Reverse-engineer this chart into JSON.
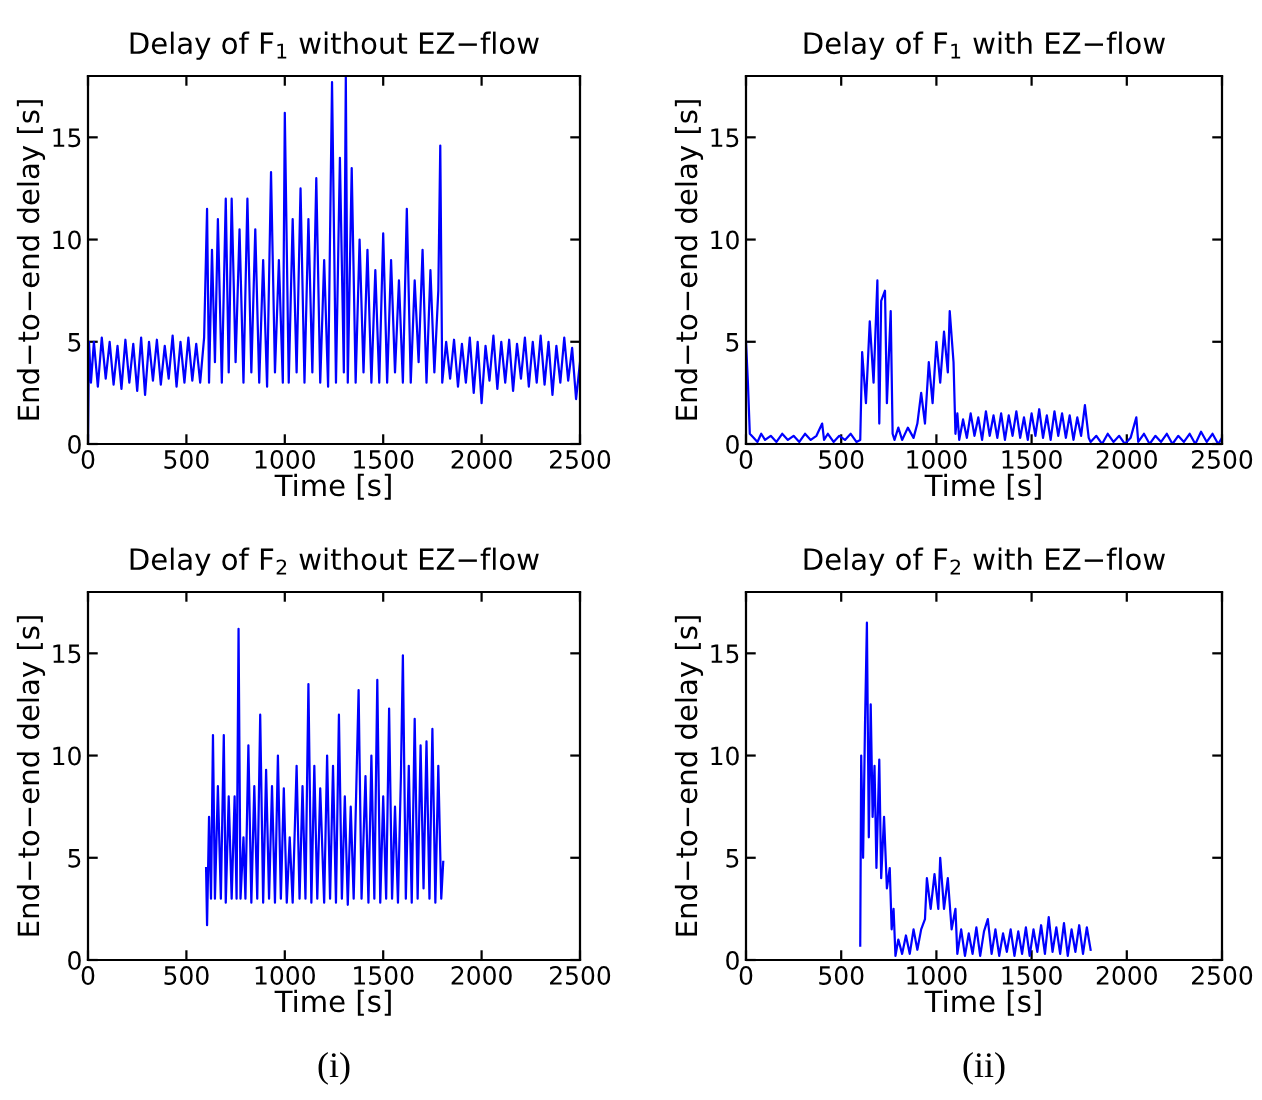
{
  "chart_data": [
    {
      "type": "line",
      "title": "Delay of F$_{1}$ without EZ−flow",
      "xlabel": "Time [s]",
      "ylabel": "End−to−end delay [s]",
      "xlim": [
        0,
        2500
      ],
      "ylim": [
        0,
        18
      ],
      "xticks": [
        0,
        500,
        1000,
        1500,
        2000,
        2500
      ],
      "yticks": [
        0,
        5,
        10,
        15
      ],
      "series": [
        {
          "color": "#0000ff",
          "x": [
            0,
            5,
            15,
            30,
            50,
            70,
            90,
            110,
            130,
            150,
            170,
            190,
            210,
            230,
            250,
            270,
            290,
            310,
            330,
            350,
            370,
            390,
            410,
            430,
            450,
            470,
            490,
            510,
            530,
            550,
            570,
            590,
            605,
            615,
            630,
            645,
            660,
            680,
            700,
            715,
            730,
            750,
            770,
            790,
            810,
            830,
            850,
            870,
            890,
            910,
            930,
            950,
            970,
            990,
            1000,
            1020,
            1040,
            1060,
            1080,
            1100,
            1120,
            1140,
            1160,
            1180,
            1200,
            1220,
            1240,
            1260,
            1280,
            1300,
            1310,
            1320,
            1340,
            1360,
            1380,
            1400,
            1420,
            1440,
            1460,
            1480,
            1500,
            1520,
            1540,
            1560,
            1580,
            1600,
            1620,
            1640,
            1660,
            1680,
            1700,
            1720,
            1740,
            1760,
            1780,
            1790,
            1800,
            1820,
            1840,
            1860,
            1880,
            1900,
            1920,
            1940,
            1960,
            1980,
            2000,
            2020,
            2040,
            2060,
            2080,
            2100,
            2120,
            2140,
            2160,
            2180,
            2200,
            2220,
            2240,
            2260,
            2280,
            2300,
            2320,
            2340,
            2360,
            2380,
            2400,
            2420,
            2440,
            2460,
            2480,
            2500
          ],
          "values": [
            0,
            5,
            3,
            5,
            2.8,
            5.2,
            3.2,
            5,
            2.9,
            4.8,
            2.7,
            5.1,
            3,
            4.9,
            2.6,
            5.2,
            2.4,
            5,
            3.1,
            5.1,
            2.9,
            4.8,
            3.2,
            5.3,
            2.8,
            5,
            3,
            5.2,
            3.1,
            4.9,
            3,
            5.2,
            11.5,
            3,
            9.5,
            4,
            11,
            3,
            12,
            3.5,
            12,
            4,
            10.5,
            3,
            12,
            3.5,
            10.5,
            3,
            9,
            2.8,
            13.3,
            3.5,
            9,
            3,
            16.2,
            3,
            11,
            3.5,
            12.5,
            3,
            11,
            3.5,
            13,
            3,
            9,
            2.8,
            17.7,
            3,
            14,
            3.5,
            18,
            3,
            13.5,
            3,
            10,
            3.5,
            9.5,
            3,
            8.5,
            3,
            10.3,
            3,
            9,
            3.5,
            8,
            3,
            11.5,
            3,
            8,
            4,
            9.5,
            3,
            8.5,
            3.5,
            7.5,
            14.6,
            3,
            5,
            3.2,
            5.1,
            2.8,
            4.9,
            3,
            5.2,
            2.5,
            5,
            2,
            4.8,
            3.1,
            5.3,
            2.7,
            5,
            3,
            5.1,
            2.6,
            4.9,
            3.2,
            5.2,
            2.8,
            5,
            3,
            5.3,
            2.9,
            5,
            2.4,
            4.8,
            3,
            5.2,
            3.1,
            4.7,
            2.2,
            4
          ]
        }
      ]
    },
    {
      "type": "line",
      "title": "Delay of F$_{1}$ with EZ−flow",
      "xlabel": "Time [s]",
      "ylabel": "End−to−end delay [s]",
      "xlim": [
        0,
        2500
      ],
      "ylim": [
        0,
        18
      ],
      "xticks": [
        0,
        500,
        1000,
        1500,
        2000,
        2500
      ],
      "yticks": [
        0,
        5,
        10,
        15
      ],
      "series": [
        {
          "color": "#0000ff",
          "x": [
            0,
            10,
            20,
            40,
            60,
            80,
            100,
            130,
            160,
            190,
            220,
            250,
            280,
            310,
            340,
            370,
            400,
            410,
            430,
            460,
            490,
            520,
            550,
            580,
            600,
            610,
            630,
            650,
            670,
            690,
            700,
            710,
            730,
            740,
            760,
            770,
            780,
            800,
            820,
            850,
            880,
            900,
            920,
            940,
            960,
            980,
            1000,
            1020,
            1040,
            1060,
            1070,
            1090,
            1100,
            1110,
            1120,
            1140,
            1160,
            1180,
            1200,
            1220,
            1240,
            1260,
            1280,
            1300,
            1320,
            1340,
            1360,
            1380,
            1400,
            1420,
            1440,
            1460,
            1480,
            1500,
            1520,
            1540,
            1560,
            1580,
            1600,
            1620,
            1640,
            1660,
            1680,
            1700,
            1720,
            1740,
            1760,
            1780,
            1800,
            1810,
            1840,
            1870,
            1900,
            1930,
            1960,
            1990,
            2020,
            2050,
            2060,
            2090,
            2120,
            2150,
            2180,
            2210,
            2240,
            2270,
            2300,
            2330,
            2360,
            2390,
            2420,
            2450,
            2480,
            2500
          ],
          "values": [
            5,
            3,
            0.5,
            0.3,
            0.1,
            0.5,
            0.2,
            0.4,
            0.1,
            0.5,
            0.2,
            0.4,
            0.1,
            0.5,
            0.2,
            0.4,
            1,
            0.2,
            0.5,
            0.1,
            0.4,
            0.2,
            0.5,
            0.1,
            0.2,
            4.5,
            2,
            6,
            3,
            8,
            1,
            7,
            7.5,
            2,
            6.5,
            0.5,
            0.2,
            0.8,
            0.2,
            0.8,
            0.3,
            1,
            2.5,
            1,
            4,
            2,
            5,
            3,
            5.5,
            3.5,
            6.5,
            4,
            0.5,
            1.5,
            0.2,
            1.2,
            0.3,
            1.5,
            0.4,
            1.3,
            0.2,
            1.6,
            0.4,
            1.4,
            0.3,
            1.5,
            0.2,
            1.4,
            0.4,
            1.6,
            0.3,
            1.3,
            0.2,
            1.5,
            0.4,
            1.7,
            0.3,
            1.4,
            0.2,
            1.6,
            0.4,
            1.5,
            0.3,
            1.4,
            0.2,
            1.3,
            0.4,
            1.9,
            0.3,
            0.1,
            0.4,
            0,
            0.5,
            0.1,
            0.4,
            0,
            0.3,
            1.3,
            0.1,
            0.5,
            0,
            0.4,
            0.1,
            0.5,
            0,
            0.4,
            0.1,
            0.5,
            0,
            0.6,
            0.1,
            0.5,
            0,
            0.3
          ]
        }
      ]
    },
    {
      "type": "line",
      "title": "Delay of F$_{2}$ without EZ−flow",
      "xlabel": "Time [s]",
      "ylabel": "End−to−end delay [s]",
      "xlim": [
        0,
        2500
      ],
      "ylim": [
        0,
        18
      ],
      "xticks": [
        0,
        500,
        1000,
        1500,
        2000,
        2500
      ],
      "yticks": [
        0,
        5,
        10,
        15
      ],
      "annotations": [
        "(i)"
      ],
      "series": [
        {
          "color": "#0000ff",
          "x": [
            600,
            605,
            615,
            625,
            635,
            645,
            660,
            675,
            690,
            700,
            715,
            730,
            745,
            755,
            765,
            775,
            790,
            800,
            815,
            830,
            845,
            860,
            875,
            890,
            905,
            920,
            935,
            950,
            965,
            980,
            995,
            1010,
            1025,
            1040,
            1060,
            1075,
            1090,
            1105,
            1120,
            1135,
            1150,
            1165,
            1180,
            1200,
            1215,
            1230,
            1245,
            1260,
            1275,
            1290,
            1305,
            1320,
            1335,
            1350,
            1375,
            1390,
            1410,
            1425,
            1440,
            1455,
            1470,
            1485,
            1500,
            1515,
            1530,
            1545,
            1560,
            1575,
            1590,
            1600,
            1615,
            1630,
            1645,
            1660,
            1675,
            1690,
            1705,
            1720,
            1735,
            1750,
            1765,
            1780,
            1795,
            1805
          ],
          "values": [
            4.5,
            1.7,
            7,
            3,
            11,
            3,
            8.5,
            3,
            11,
            2.8,
            8,
            3,
            8,
            3,
            16.2,
            3,
            6,
            3,
            10.5,
            2.8,
            8.5,
            3,
            12,
            2.8,
            9.3,
            3,
            8.5,
            2.8,
            10,
            3,
            8.4,
            2.8,
            6,
            2.8,
            9.5,
            3,
            8.5,
            3,
            13.5,
            2.8,
            9.5,
            3,
            8.4,
            2.8,
            10,
            3,
            9.5,
            2.8,
            12,
            3,
            8,
            2.7,
            7.5,
            3,
            13.2,
            3,
            9,
            2.8,
            10,
            3,
            13.7,
            2.8,
            8,
            3,
            12.3,
            3,
            7.5,
            2.8,
            9,
            14.9,
            3,
            9.5,
            2.8,
            11.8,
            3,
            10.5,
            3.5,
            10.7,
            3,
            11.3,
            2.8,
            9.5,
            3,
            4.8
          ]
        }
      ]
    },
    {
      "type": "line",
      "title": "Delay of F$_{2}$ with EZ−flow",
      "xlabel": "Time [s]",
      "ylabel": "End−to−end delay [s]",
      "xlim": [
        0,
        2500
      ],
      "ylim": [
        0,
        18
      ],
      "xticks": [
        0,
        500,
        1000,
        1500,
        2000,
        2500
      ],
      "yticks": [
        0,
        5,
        10,
        15
      ],
      "annotations": [
        "(ii)"
      ],
      "series": [
        {
          "color": "#0000ff",
          "x": [
            600,
            605,
            615,
            625,
            635,
            645,
            655,
            665,
            675,
            685,
            700,
            710,
            725,
            740,
            755,
            765,
            775,
            785,
            800,
            820,
            840,
            860,
            880,
            900,
            920,
            940,
            950,
            970,
            990,
            1010,
            1020,
            1040,
            1060,
            1080,
            1100,
            1110,
            1130,
            1150,
            1170,
            1190,
            1210,
            1230,
            1250,
            1270,
            1290,
            1310,
            1330,
            1350,
            1370,
            1390,
            1410,
            1430,
            1450,
            1470,
            1490,
            1510,
            1530,
            1550,
            1570,
            1590,
            1610,
            1630,
            1650,
            1670,
            1690,
            1710,
            1730,
            1750,
            1770,
            1790,
            1810
          ],
          "values": [
            0.7,
            10,
            5,
            11.5,
            16.5,
            6,
            12.5,
            7,
            9.5,
            4.5,
            9.8,
            4,
            7,
            3.5,
            4.5,
            1.5,
            2.5,
            0.2,
            1,
            0.3,
            1.2,
            0.3,
            1.5,
            0.5,
            1.5,
            2,
            4,
            2.5,
            4.2,
            2.5,
            5,
            2.5,
            4,
            1.5,
            2.5,
            0.3,
            1.5,
            0.2,
            1.3,
            0.3,
            1.6,
            0.2,
            1.4,
            2,
            0.3,
            1.5,
            0.2,
            1.3,
            0.4,
            1.5,
            0.2,
            1.4,
            0.3,
            1.6,
            0.2,
            1.5,
            0.4,
            1.7,
            0.3,
            2.1,
            0.4,
            1.6,
            0.3,
            1.8,
            0.2,
            1.5,
            0.4,
            1.7,
            0.3,
            1.6,
            0.5
          ]
        }
      ]
    }
  ]
}
